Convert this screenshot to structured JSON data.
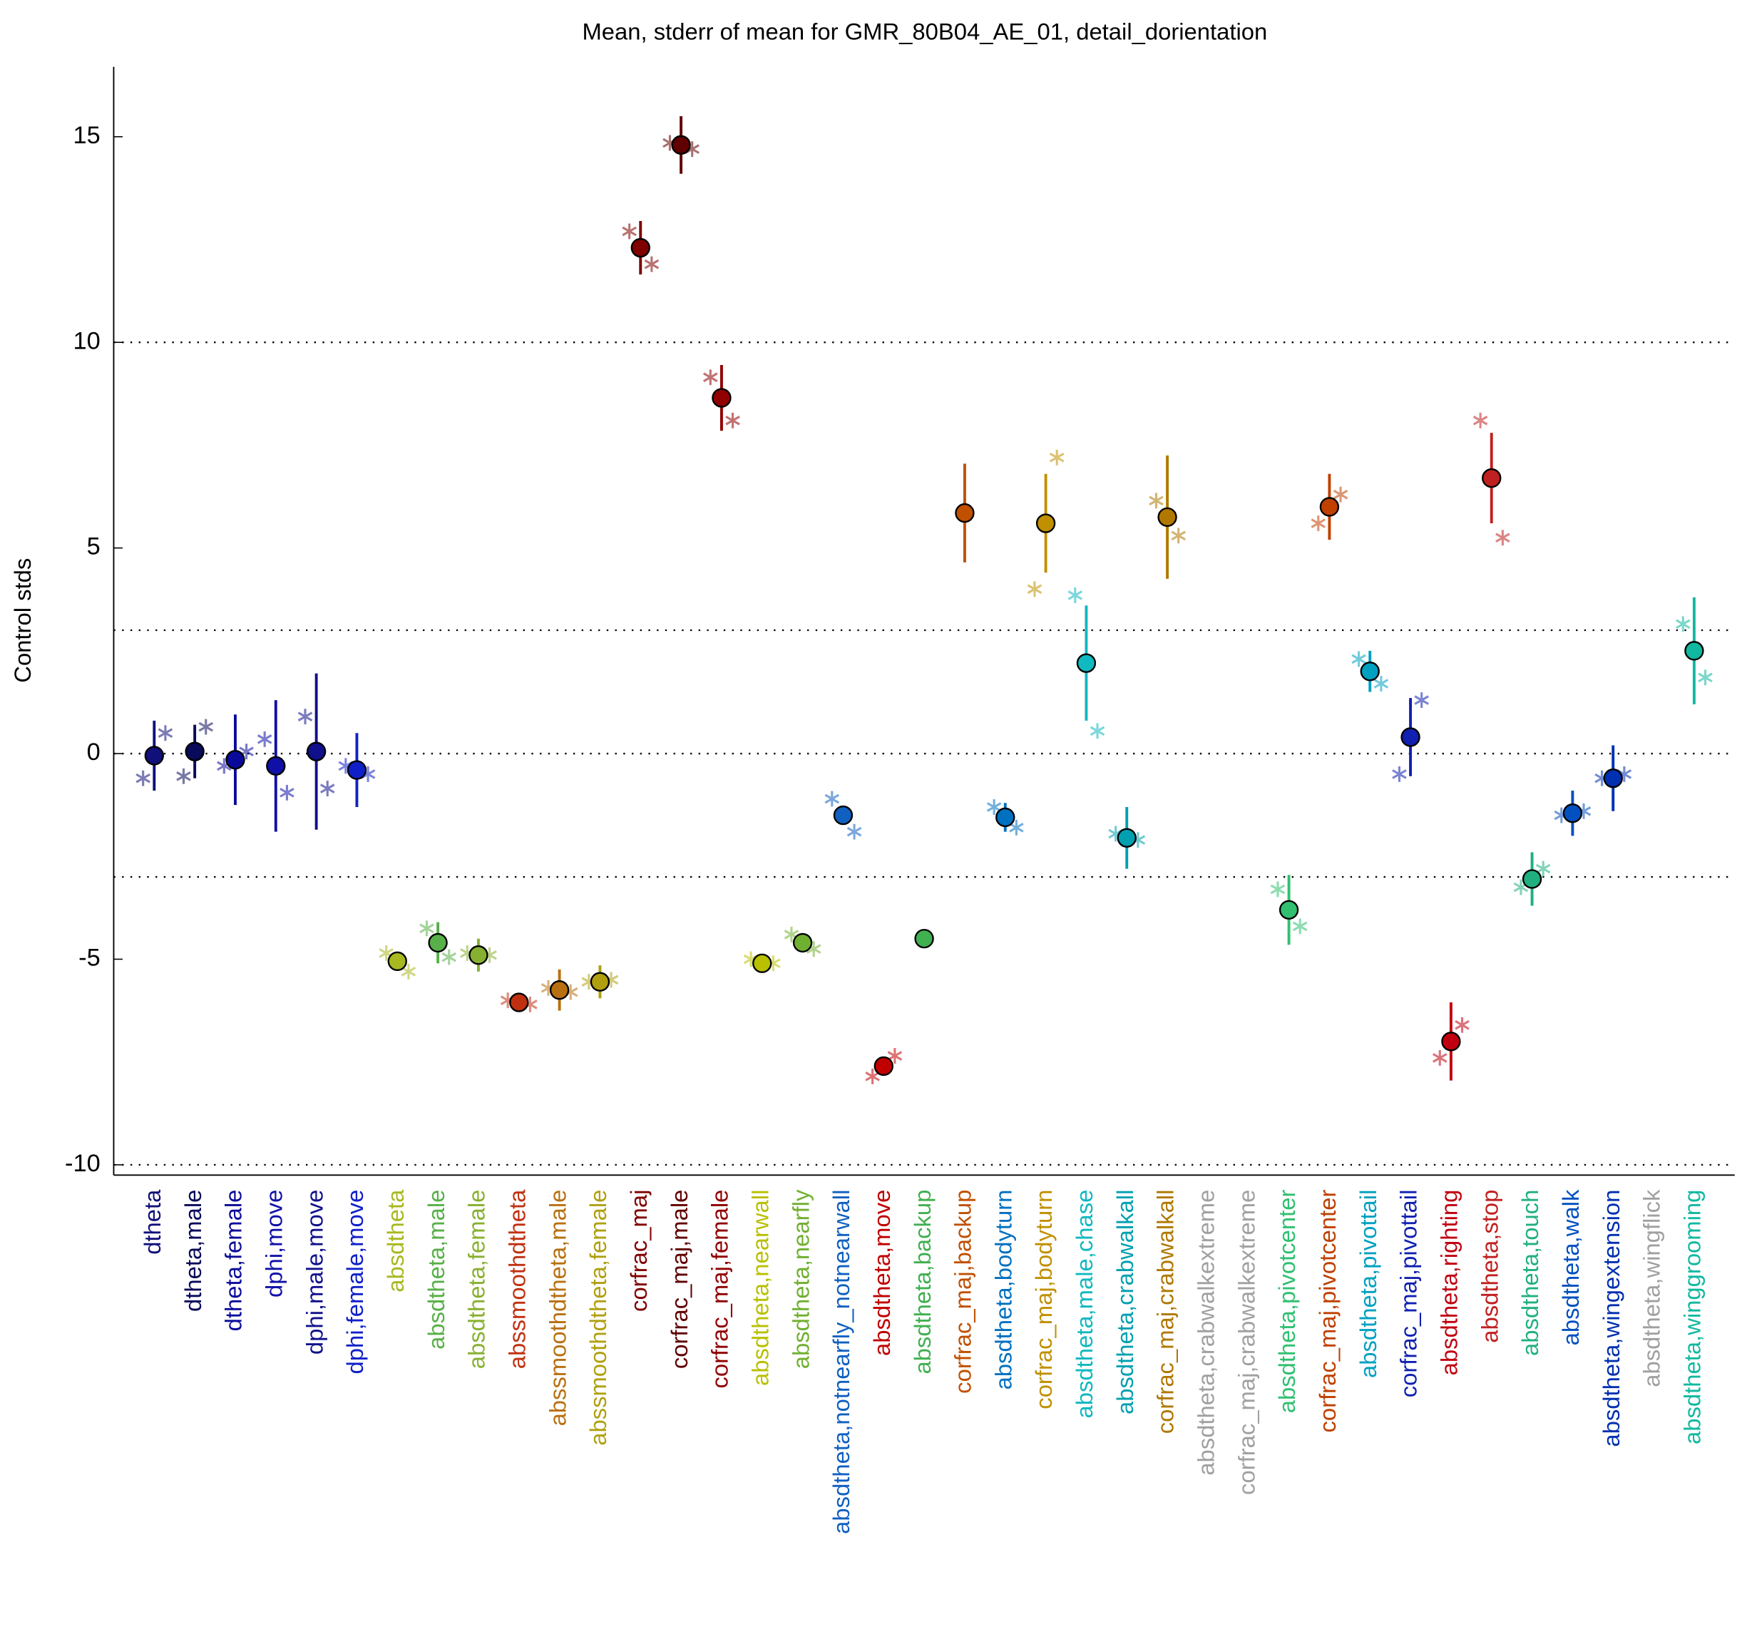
{
  "chart_data": {
    "type": "errorbar",
    "title": "Mean, stderr of mean for GMR_80B04_AE_01, detail_dorientation",
    "y_label": "Control stds",
    "categories": [
      "dtheta",
      "dtheta,male",
      "dtheta,female",
      "dphi,move",
      "dphi,male,move",
      "dphi,female,move",
      "absdtheta",
      "absdtheta,male",
      "absdtheta,female",
      "abssmoothdtheta",
      "abssmoothdtheta,male",
      "abssmoothdtheta,female",
      "corfrac_maj",
      "corfrac_maj,male",
      "corfrac_maj,female",
      "absdtheta,nearwall",
      "absdtheta,nearfly",
      "absdtheta,notnearfly_notnearwall",
      "absdtheta,move",
      "absdtheta,backup",
      "corfrac_maj,backup",
      "absdtheta,bodyturn",
      "corfrac_maj,bodyturn",
      "absdtheta,male,chase",
      "absdtheta,crabwalkall",
      "corfrac_maj,crabwalkall",
      "absdtheta,crabwalkextreme",
      "corfrac_maj,crabwalkextreme",
      "absdtheta,pivotcenter",
      "corfrac_maj,pivotcenter",
      "absdtheta,pivottail",
      "corfrac_maj,pivottail",
      "absdtheta,righting",
      "absdtheta,stop",
      "absdtheta,touch",
      "absdtheta,walk",
      "absdtheta,wingextension",
      "absdtheta,wingflick",
      "absdtheta,winggrooming"
    ],
    "colors": [
      "#10107a",
      "#0a0a5a",
      "#0a0a9a",
      "#1010a8",
      "#10108c",
      "#1020c8",
      "#a8b820",
      "#58b048",
      "#88b030",
      "#c03010",
      "#b87010",
      "#b0a010",
      "#800000",
      "#600000",
      "#900000",
      "#b8c000",
      "#70b030",
      "#1060c0",
      "#c00000",
      "#40b050",
      "#c05000",
      "#0070c0",
      "#c09000",
      "#10b8c0",
      "#00a0b0",
      "#b07800",
      "#a0a0a0",
      "#a0a0a0",
      "#30c070",
      "#c04000",
      "#00a0c0",
      "#1020b0",
      "#c00010",
      "#c02020",
      "#20b080",
      "#0050c0",
      "#0030b0",
      "#a0a0a0",
      "#10b8a0"
    ],
    "values": [
      -0.05,
      0.05,
      -0.15,
      -0.3,
      0.05,
      -0.4,
      -5.05,
      -4.6,
      -4.9,
      -6.05,
      -5.75,
      -5.55,
      12.3,
      14.8,
      8.65,
      -5.1,
      -4.6,
      -1.5,
      -7.6,
      -4.5,
      5.85,
      -1.55,
      5.6,
      2.2,
      -2.05,
      5.75,
      null,
      null,
      -3.8,
      6.0,
      2.0,
      0.4,
      -7.0,
      6.7,
      -3.05,
      -1.45,
      -0.6,
      null,
      2.5
    ],
    "errors": [
      0.85,
      0.65,
      1.1,
      1.6,
      1.9,
      0.9,
      0.2,
      0.5,
      0.4,
      0.2,
      0.5,
      0.4,
      0.65,
      0.7,
      0.8,
      0.2,
      0.2,
      0.15,
      0.15,
      0.05,
      1.2,
      0.35,
      1.2,
      1.4,
      0.75,
      1.5,
      null,
      null,
      0.85,
      0.8,
      0.5,
      0.95,
      0.95,
      1.1,
      0.65,
      0.55,
      0.8,
      null,
      1.3
    ],
    "star_left": [
      -0.6,
      -0.55,
      -0.3,
      0.35,
      0.9,
      -0.3,
      -4.85,
      -4.25,
      -4.85,
      -6.0,
      -5.7,
      -5.55,
      12.7,
      14.85,
      9.15,
      -5.0,
      -4.4,
      -1.1,
      -7.85,
      null,
      null,
      -1.3,
      4.0,
      3.85,
      -1.95,
      6.15,
      null,
      null,
      -3.3,
      5.6,
      2.3,
      -0.5,
      -7.4,
      8.1,
      -3.25,
      -1.5,
      -0.6,
      null,
      3.15
    ],
    "star_right": [
      0.5,
      0.65,
      0.05,
      -0.95,
      -0.85,
      -0.5,
      -5.3,
      -4.95,
      -4.9,
      -6.1,
      -5.8,
      -5.5,
      11.9,
      14.7,
      8.1,
      -5.1,
      -4.75,
      -1.9,
      -7.35,
      null,
      null,
      -1.8,
      7.2,
      0.55,
      -2.1,
      5.3,
      null,
      null,
      -4.2,
      6.3,
      1.7,
      1.3,
      -6.6,
      5.25,
      -2.8,
      -1.4,
      -0.5,
      null,
      1.85
    ],
    "xlim": [
      0,
      40
    ],
    "ylim": [
      -10.25,
      16.7
    ],
    "yticks": [
      -10,
      -5,
      0,
      5,
      10,
      15
    ],
    "grid_lines": [
      -10,
      -3,
      0,
      3,
      10
    ]
  }
}
